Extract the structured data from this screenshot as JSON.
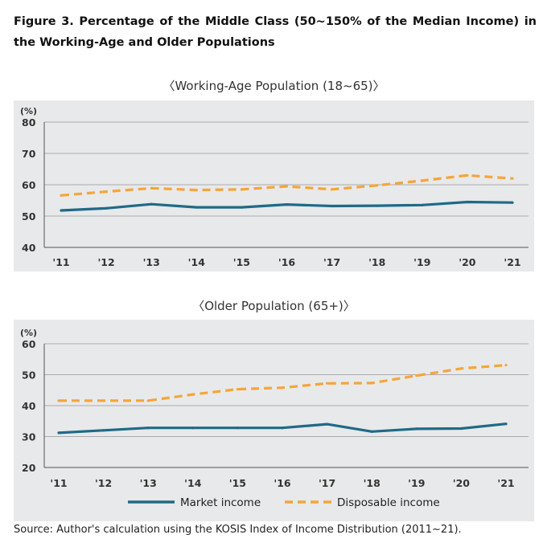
{
  "figure": {
    "title": "Figure 3. Percentage of the Middle Class (50~150% of the Median Income) in the Working-Age and Older Populations",
    "source": "Source: Author's calculation using the KOSIS Index of Income Distribution (2011~21)."
  },
  "chart_data": [
    {
      "type": "line",
      "title": "〈Working-Age Population (18~65)〉",
      "ylabel": "(%)",
      "ylim": [
        40,
        80
      ],
      "yticks": [
        40,
        50,
        60,
        70,
        80
      ],
      "categories": [
        "'11",
        "'12",
        "'13",
        "'14",
        "'15",
        "'16",
        "'17",
        "'18",
        "'19",
        "'20",
        "'21"
      ],
      "grid": true,
      "series": [
        {
          "name": "Market income",
          "color": "#1f6a87",
          "dash": false,
          "values": [
            51.8,
            52.5,
            53.8,
            52.8,
            52.8,
            53.7,
            53.2,
            53.3,
            53.5,
            54.5,
            54.3
          ]
        },
        {
          "name": "Disposable income",
          "color": "#f5a53a",
          "dash": true,
          "values": [
            56.6,
            57.8,
            58.9,
            58.3,
            58.5,
            59.5,
            58.5,
            59.8,
            61.3,
            63.0,
            62.0
          ]
        }
      ]
    },
    {
      "type": "line",
      "title": "〈Older Population (65+)〉",
      "ylabel": "(%)",
      "ylim": [
        20,
        60
      ],
      "yticks": [
        20,
        30,
        40,
        50,
        60
      ],
      "categories": [
        "'11",
        "'12",
        "'13",
        "'14",
        "'15",
        "'16",
        "'17",
        "'18",
        "'19",
        "'20",
        "'21"
      ],
      "grid": true,
      "legend": "bottom",
      "series": [
        {
          "name": "Market income",
          "color": "#1f6a87",
          "dash": false,
          "values": [
            31.2,
            32.0,
            32.8,
            32.8,
            32.8,
            32.8,
            34.0,
            31.6,
            32.5,
            32.6,
            34.1
          ]
        },
        {
          "name": "Disposable income",
          "color": "#f5a53a",
          "dash": true,
          "values": [
            41.6,
            41.6,
            41.6,
            43.6,
            45.3,
            45.8,
            47.2,
            47.3,
            49.7,
            52.0,
            53.1
          ]
        }
      ]
    }
  ]
}
